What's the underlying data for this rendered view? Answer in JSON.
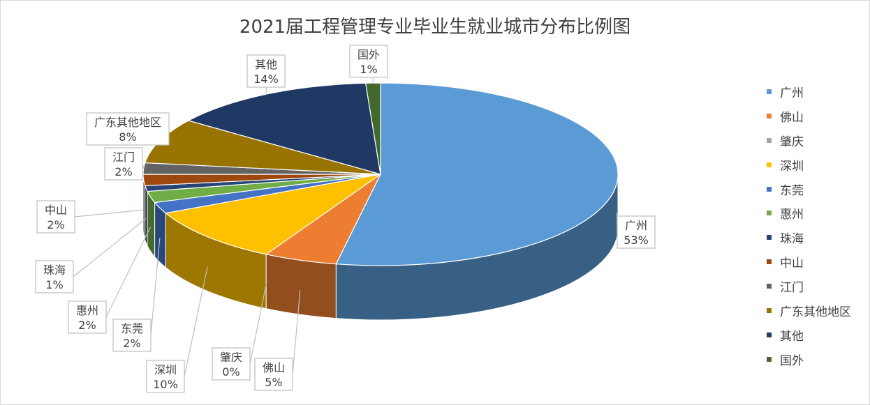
{
  "chart_data": {
    "type": "pie",
    "title": "2021届工程管理专业毕业生就业城市分布比例图",
    "categories": [
      "广州",
      "佛山",
      "肇庆",
      "深圳",
      "东莞",
      "惠州",
      "珠海",
      "中山",
      "江门",
      "广东其他地区",
      "其他",
      "国外"
    ],
    "values": [
      53,
      5,
      0,
      10,
      2,
      2,
      1,
      2,
      2,
      8,
      14,
      1
    ],
    "data_labels": [
      "53%",
      "5%",
      "0%",
      "10%",
      "2%",
      "2%",
      "1%",
      "2%",
      "2%",
      "8%",
      "14%",
      "1%"
    ],
    "colors": [
      "#5b9bd5",
      "#ed7d31",
      "#a5a5a5",
      "#ffc000",
      "#4472c4",
      "#70ad47",
      "#264478",
      "#9e480e",
      "#636363",
      "#997300",
      "#203864",
      "#43682b"
    ],
    "legend_position": "right",
    "style": "3d-exploded-slices"
  }
}
